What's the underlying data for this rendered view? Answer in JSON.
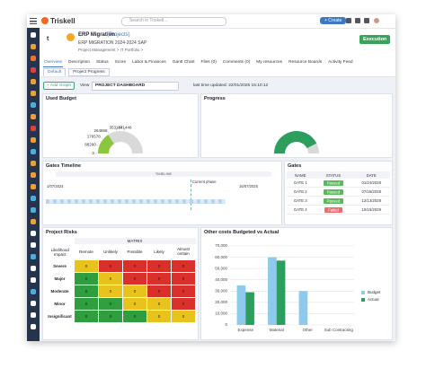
{
  "topbar": {
    "logo": "Triskell",
    "search": "Search in Triskell...",
    "create": "+ Create"
  },
  "header": {
    "icon_letter": "t",
    "title": "ERP Migration",
    "title_type": "(Projects)",
    "subtitle": "ERP MIGRATION 2024-2024 SAP",
    "breadcrumb": "Project Management > IT Portfolio >",
    "status_button": "Execution"
  },
  "tabs": [
    "Overview",
    "Description",
    "Status",
    "Score",
    "Labor & Finances",
    "Gantt Chart",
    "Files (0)",
    "Comments (0)",
    "My resources",
    "Resource Boards",
    "Activity Feed"
  ],
  "subtabs": [
    "Default",
    "Project Progress"
  ],
  "toolbar": {
    "add_graph": "+ Add Graph",
    "view_label": "View",
    "view": "PROJECT DASHBOARD",
    "updated": "last time updated: 22/01/2025 15:10:12"
  },
  "panels": {
    "used_budget": {
      "title": "Used Budget",
      "type": "gauge",
      "value": 250000,
      "ylim": [
        0,
        794602
      ],
      "yticks": [
        0,
        88290,
        176578,
        264868,
        353157,
        441446
      ],
      "color": "#8cc63f",
      "track": "#d9d9d9"
    },
    "progress": {
      "title": "Progress",
      "type": "gauge",
      "value": 85,
      "ylim": [
        0,
        100
      ],
      "color": "#2e9e5e",
      "track": "#d9d9d9"
    },
    "gates_timeline": {
      "title": "Gates Timeline",
      "header": "TIMELINE",
      "current": "Current phase",
      "start": "1/07/2024",
      "end": "16/07/2025"
    },
    "gates": {
      "title": "Gates",
      "columns": [
        "NAME",
        "STATUS",
        "DATE"
      ],
      "rows": [
        [
          "GATE 1",
          "Passed",
          "01/24/2028"
        ],
        [
          "GATE 2",
          "Passed",
          "07/26/2028"
        ],
        [
          "GATE 3",
          "Passed",
          "12/13/2028"
        ],
        [
          "GATE 4",
          "Failed",
          "10/15/2029"
        ]
      ],
      "status_colors": {
        "Passed": "#5cb85c",
        "Failed": "#ef6b6b"
      }
    },
    "project_risks": {
      "title": "Project Risks",
      "header": "MATRIX",
      "corner": [
        "Likelihood",
        "Impact"
      ],
      "columns": [
        "Remote",
        "Unlikely",
        "Possible",
        "Likely",
        "Almost certain"
      ],
      "rows": [
        "Severe",
        "Major",
        "Moderate",
        "Minor",
        "Insignificant"
      ],
      "values": [
        [
          0,
          0,
          0,
          0,
          0
        ],
        [
          0,
          0,
          0,
          0,
          0
        ],
        [
          0,
          0,
          0,
          0,
          0
        ],
        [
          0,
          0,
          0,
          0,
          0
        ],
        [
          0,
          0,
          0,
          0,
          0
        ]
      ],
      "colors": [
        [
          "#e8c21d",
          "#d9302b",
          "#d9302b",
          "#d9302b",
          "#d9302b"
        ],
        [
          "#2e9e3e",
          "#e8c21d",
          "#d9302b",
          "#d9302b",
          "#d9302b"
        ],
        [
          "#2e9e3e",
          "#e8c21d",
          "#e8c21d",
          "#d9302b",
          "#d9302b"
        ],
        [
          "#2e9e3e",
          "#2e9e3e",
          "#e8c21d",
          "#e8c21d",
          "#d9302b"
        ],
        [
          "#2e9e3e",
          "#2e9e3e",
          "#2e9e3e",
          "#e8c21d",
          "#e8c21d"
        ]
      ]
    },
    "other_costs": {
      "title": "Other costs Budgeted vs Actual",
      "type": "bar",
      "categories": [
        "Expense",
        "Material",
        "Other",
        "Sub Contracting"
      ],
      "series": [
        {
          "name": "Budget",
          "color": "#8ec9ee",
          "values": [
            35000,
            60000,
            30000,
            0
          ]
        },
        {
          "name": "Actual",
          "color": "#2e9e5e",
          "values": [
            29000,
            57000,
            0,
            0
          ]
        }
      ],
      "ylim": [
        0,
        70000
      ],
      "yticks": [
        {
          "value": 0,
          "label": "0"
        },
        {
          "value": 10000,
          "label": "10,000"
        },
        {
          "value": 20000,
          "label": "20,000"
        },
        {
          "value": 30000,
          "label": "30,000"
        },
        {
          "value": 40000,
          "label": "40,000"
        },
        {
          "value": 50000,
          "label": "50,000"
        },
        {
          "value": 60000,
          "label": "60,000"
        },
        {
          "value": 70000,
          "label": "70,000"
        }
      ],
      "grid": true
    }
  }
}
